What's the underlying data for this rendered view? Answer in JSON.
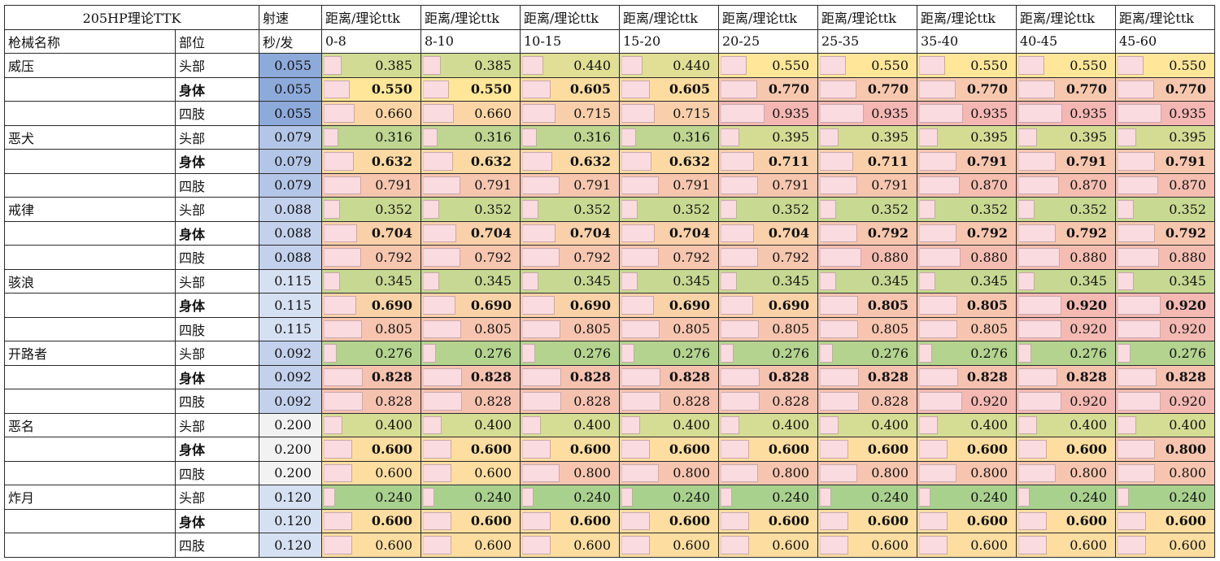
{
  "sheet": {
    "title": "205HP理论TTK",
    "fire_rate_header": "射速",
    "fire_rate_unit": "秒/发",
    "weapon_col_header": "枪械名称",
    "part_col_header": "部位",
    "distance_header": "距离/理论ttk",
    "ranges": [
      "0-8",
      "8-10",
      "10-15",
      "15-20",
      "20-25",
      "25-35",
      "35-40",
      "40-45",
      "45-60"
    ],
    "colors": {
      "fire_rate_scale": [
        "#8eaadb",
        "#b4c6e7",
        "#dae3f3",
        "#f2f2f2"
      ],
      "ttk_scale_low": "#a9d18e",
      "ttk_scale_mid": "#ffd966",
      "ttk_scale_high": "#f4b183",
      "data_bar": "#f9dbe0"
    },
    "weapons": [
      {
        "name": "威压",
        "rows": [
          {
            "part": "头部",
            "rate": "0.055",
            "bold": false,
            "ttk": [
              "0.385",
              "0.385",
              "0.440",
              "0.440",
              "0.550",
              "0.550",
              "0.550",
              "0.550",
              "0.550"
            ]
          },
          {
            "part": "身体",
            "rate": "0.055",
            "bold": true,
            "ttk": [
              "0.550",
              "0.550",
              "0.605",
              "0.605",
              "0.770",
              "0.770",
              "0.770",
              "0.770",
              "0.770"
            ]
          },
          {
            "part": "四肢",
            "rate": "0.055",
            "bold": false,
            "ttk": [
              "0.660",
              "0.660",
              "0.715",
              "0.715",
              "0.935",
              "0.935",
              "0.935",
              "0.935",
              "0.935"
            ]
          }
        ]
      },
      {
        "name": "恶犬",
        "rows": [
          {
            "part": "头部",
            "rate": "0.079",
            "bold": false,
            "ttk": [
              "0.316",
              "0.316",
              "0.316",
              "0.316",
              "0.395",
              "0.395",
              "0.395",
              "0.395",
              "0.395"
            ]
          },
          {
            "part": "身体",
            "rate": "0.079",
            "bold": true,
            "ttk": [
              "0.632",
              "0.632",
              "0.632",
              "0.632",
              "0.711",
              "0.711",
              "0.791",
              "0.791",
              "0.791"
            ]
          },
          {
            "part": "四肢",
            "rate": "0.079",
            "bold": false,
            "ttk": [
              "0.791",
              "0.791",
              "0.791",
              "0.791",
              "0.791",
              "0.791",
              "0.870",
              "0.870",
              "0.870"
            ]
          }
        ]
      },
      {
        "name": "戒律",
        "rows": [
          {
            "part": "头部",
            "rate": "0.088",
            "bold": false,
            "ttk": [
              "0.352",
              "0.352",
              "0.352",
              "0.352",
              "0.352",
              "0.352",
              "0.352",
              "0.352",
              "0.352"
            ]
          },
          {
            "part": "身体",
            "rate": "0.088",
            "bold": true,
            "ttk": [
              "0.704",
              "0.704",
              "0.704",
              "0.704",
              "0.704",
              "0.792",
              "0.792",
              "0.792",
              "0.792"
            ]
          },
          {
            "part": "四肢",
            "rate": "0.088",
            "bold": false,
            "ttk": [
              "0.792",
              "0.792",
              "0.792",
              "0.792",
              "0.792",
              "0.880",
              "0.880",
              "0.880",
              "0.880"
            ]
          }
        ]
      },
      {
        "name": "骇浪",
        "rows": [
          {
            "part": "头部",
            "rate": "0.115",
            "bold": false,
            "ttk": [
              "0.345",
              "0.345",
              "0.345",
              "0.345",
              "0.345",
              "0.345",
              "0.345",
              "0.345",
              "0.345"
            ]
          },
          {
            "part": "身体",
            "rate": "0.115",
            "bold": true,
            "ttk": [
              "0.690",
              "0.690",
              "0.690",
              "0.690",
              "0.690",
              "0.805",
              "0.805",
              "0.920",
              "0.920"
            ]
          },
          {
            "part": "四肢",
            "rate": "0.115",
            "bold": false,
            "ttk": [
              "0.805",
              "0.805",
              "0.805",
              "0.805",
              "0.805",
              "0.805",
              "0.805",
              "0.920",
              "0.920"
            ]
          }
        ]
      },
      {
        "name": "开路者",
        "rows": [
          {
            "part": "头部",
            "rate": "0.092",
            "bold": false,
            "ttk": [
              "0.276",
              "0.276",
              "0.276",
              "0.276",
              "0.276",
              "0.276",
              "0.276",
              "0.276",
              "0.276"
            ]
          },
          {
            "part": "身体",
            "rate": "0.092",
            "bold": true,
            "ttk": [
              "0.828",
              "0.828",
              "0.828",
              "0.828",
              "0.828",
              "0.828",
              "0.828",
              "0.828",
              "0.828"
            ]
          },
          {
            "part": "四肢",
            "rate": "0.092",
            "bold": false,
            "ttk": [
              "0.828",
              "0.828",
              "0.828",
              "0.828",
              "0.828",
              "0.828",
              "0.920",
              "0.920",
              "0.920"
            ]
          }
        ]
      },
      {
        "name": "恶名",
        "rows": [
          {
            "part": "头部",
            "rate": "0.200",
            "bold": false,
            "ttk": [
              "0.400",
              "0.400",
              "0.400",
              "0.400",
              "0.400",
              "0.400",
              "0.400",
              "0.400",
              "0.400"
            ]
          },
          {
            "part": "身体",
            "rate": "0.200",
            "bold": true,
            "ttk": [
              "0.600",
              "0.600",
              "0.600",
              "0.600",
              "0.600",
              "0.600",
              "0.600",
              "0.600",
              "0.800"
            ]
          },
          {
            "part": "四肢",
            "rate": "0.200",
            "bold": false,
            "ttk": [
              "0.600",
              "0.600",
              "0.800",
              "0.800",
              "0.800",
              "0.800",
              "0.800",
              "0.800",
              "0.800"
            ]
          }
        ]
      },
      {
        "name": "炸月",
        "rows": [
          {
            "part": "头部",
            "rate": "0.120",
            "bold": false,
            "ttk": [
              "0.240",
              "0.240",
              "0.240",
              "0.240",
              "0.240",
              "0.240",
              "0.240",
              "0.240",
              "0.240"
            ]
          },
          {
            "part": "身体",
            "rate": "0.120",
            "bold": true,
            "ttk": [
              "0.600",
              "0.600",
              "0.600",
              "0.600",
              "0.600",
              "0.600",
              "0.600",
              "0.600",
              "0.600"
            ]
          },
          {
            "part": "四肢",
            "rate": "0.120",
            "bold": false,
            "ttk": [
              "0.600",
              "0.600",
              "0.600",
              "0.600",
              "0.600",
              "0.600",
              "0.600",
              "0.600",
              "0.600"
            ]
          }
        ]
      }
    ]
  }
}
